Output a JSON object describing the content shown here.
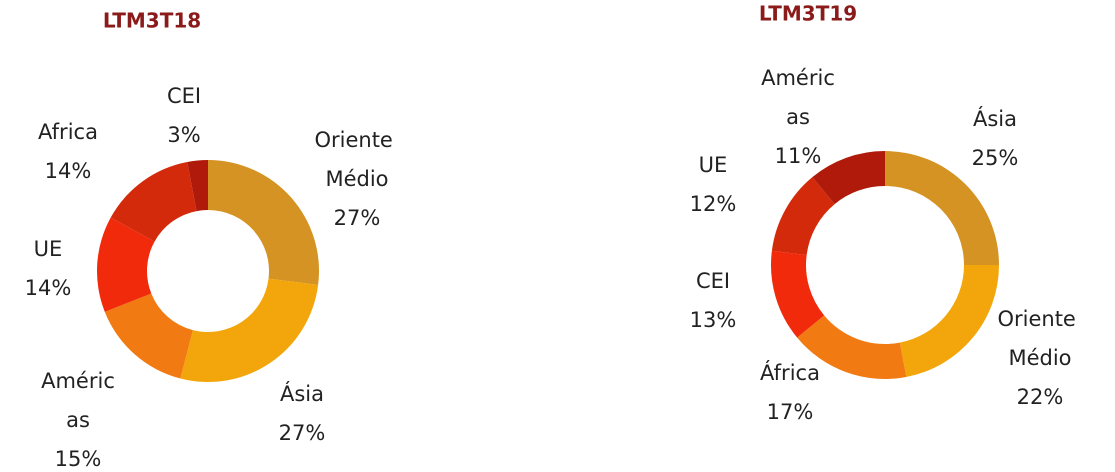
{
  "chart_data": [
    {
      "type": "donut",
      "title": "LTM3T18",
      "categories": [
        "Oriente Médio",
        "Ásia",
        "Américas",
        "UE",
        "Africa",
        "CEI"
      ],
      "values": [
        27,
        27,
        15,
        14,
        14,
        3
      ],
      "value_labels": [
        "27%",
        "27%",
        "15%",
        "14%",
        "14%",
        "3%"
      ],
      "colors": [
        "#d49322",
        "#f2a60c",
        "#f27a12",
        "#f22a0c",
        "#d42a0c",
        "#b01a0a"
      ]
    },
    {
      "type": "donut",
      "title": "LTM3T19",
      "categories": [
        "Ásia",
        "Oriente Médio",
        "África",
        "CEI",
        "UE",
        "Américas"
      ],
      "values": [
        25,
        22,
        17,
        13,
        12,
        11
      ],
      "value_labels": [
        "25%",
        "22%",
        "17%",
        "13%",
        "12%",
        "11%"
      ],
      "colors": [
        "#d49322",
        "#f2a60c",
        "#f27a12",
        "#f22a0c",
        "#d42a0c",
        "#b01a0a"
      ]
    }
  ]
}
